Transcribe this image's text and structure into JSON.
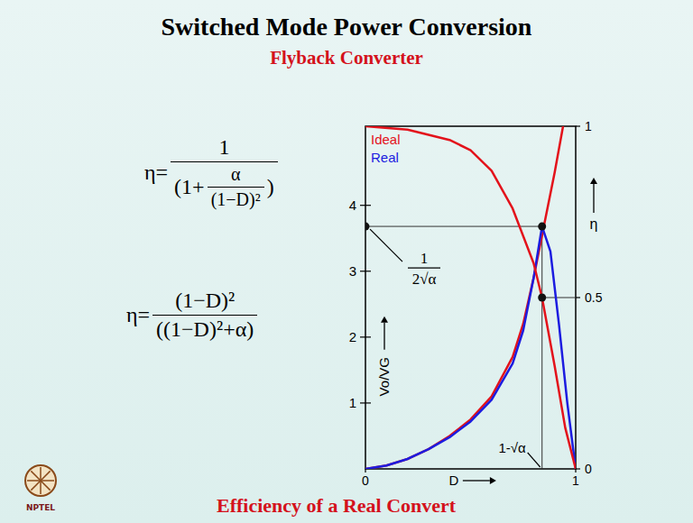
{
  "slide": {
    "title": "Switched Mode Power Conversion",
    "subtitle": "Flyback Converter",
    "footer": "Efficiency of a Real Convert",
    "logo_text": "NPTEL",
    "equations": [
      {
        "lhs": "η=",
        "numerator": "1",
        "denominator": {
          "open": "(",
          "before": "1+",
          "numerator": "α",
          "denominator": "(1−D)²",
          "close": ")"
        }
      },
      {
        "lhs": "η=",
        "numerator": "(1−D)²",
        "denominator": "((1−D)²+α)"
      }
    ]
  },
  "chart_data": {
    "type": "line",
    "x_label": "D",
    "y_label": "Vo/VG",
    "y2_label": "η",
    "xlim": [
      0,
      1
    ],
    "xticks": [
      0,
      1
    ],
    "ylim": [
      0,
      5.2
    ],
    "yticks": [
      1,
      2,
      3,
      4
    ],
    "y2lim": [
      0,
      1
    ],
    "y2ticks": [
      0,
      0.5,
      1
    ],
    "legend": "top-left",
    "series": [
      {
        "name": "Ideal",
        "color": "#e3121b",
        "x": [
          0,
          0.1,
          0.2,
          0.3,
          0.4,
          0.5,
          0.6,
          0.7,
          0.75,
          0.8,
          0.85,
          0.9,
          0.94
        ],
        "values": [
          0,
          0.05,
          0.15,
          0.3,
          0.5,
          0.75,
          1.1,
          1.7,
          2.2,
          2.9,
          3.7,
          4.5,
          5.2
        ]
      },
      {
        "name": "Real",
        "color": "#1c1ce0",
        "x": [
          0,
          0.1,
          0.2,
          0.3,
          0.4,
          0.5,
          0.6,
          0.7,
          0.75,
          0.8,
          0.84,
          0.88,
          0.92,
          0.96,
          1
        ],
        "values": [
          0,
          0.05,
          0.15,
          0.3,
          0.48,
          0.72,
          1.05,
          1.6,
          2.1,
          2.9,
          3.68,
          3.3,
          2.2,
          1.0,
          0
        ]
      },
      {
        "color": "#e3121b",
        "axis": "y2",
        "x": [
          0,
          0.2,
          0.4,
          0.5,
          0.6,
          0.7,
          0.8,
          0.84,
          0.9,
          0.95,
          1
        ],
        "values": [
          1.0,
          0.99,
          0.96,
          0.93,
          0.87,
          0.76,
          0.6,
          0.5,
          0.3,
          0.12,
          0
        ]
      }
    ],
    "points": [
      {
        "x": 0,
        "y": 3.68
      },
      {
        "x": 0.84,
        "y": 3.68
      },
      {
        "x": 0.84,
        "y": 0.5,
        "axis": "y2"
      }
    ],
    "annotations": [
      {
        "numerator": "1",
        "denominator": "2√α",
        "x": 0,
        "y": 3.68
      },
      {
        "text": "1-√α",
        "x": 0.84,
        "y": 0
      }
    ]
  }
}
